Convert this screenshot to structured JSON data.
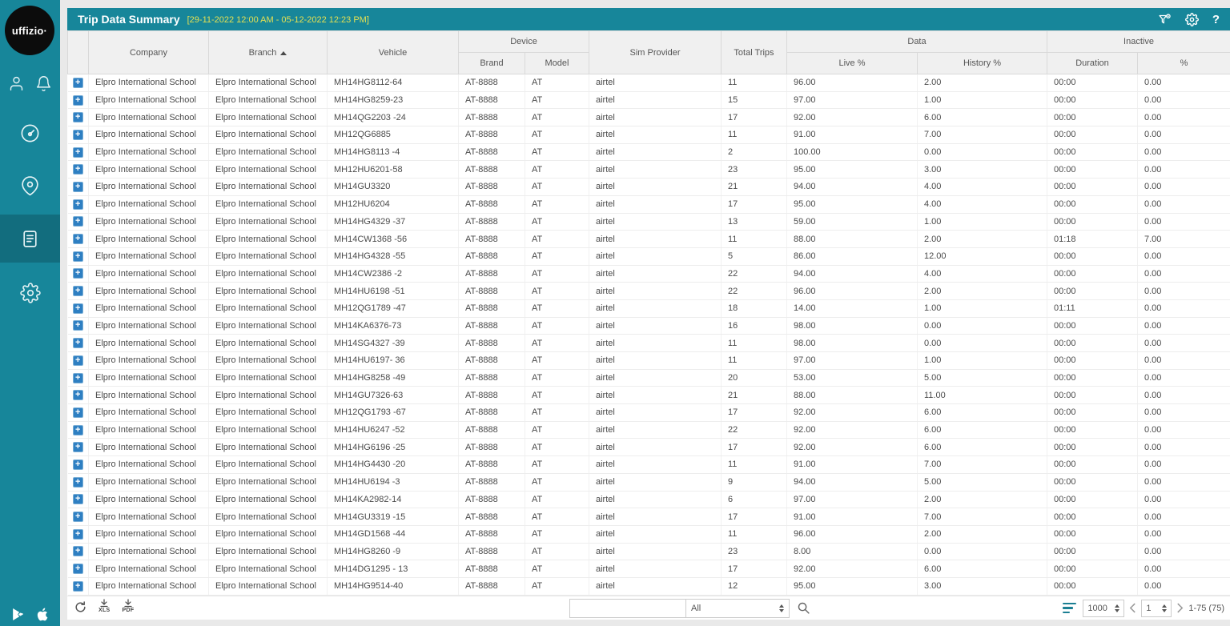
{
  "brand_logo": "uffizio·",
  "colors": {
    "accent_teal": "#17869a",
    "date_yellow": "#e4e052",
    "expand_blue": "#2e7fc2",
    "page_bg": "#e9e9e9"
  },
  "icons": {
    "sidebar": [
      "user",
      "bell",
      "dashboard-speedometer",
      "location-pin",
      "reports-document",
      "settings-gear",
      "google-play",
      "apple"
    ],
    "titlebar": [
      "filter-funnel",
      "settings-gear",
      "help-question"
    ],
    "footer": [
      "refresh",
      "download-xls",
      "download-pdf",
      "search-magnifier",
      "rows-lines",
      "chevron-left",
      "chevron-right"
    ]
  },
  "titlebar": {
    "title": "Trip Data Summary",
    "date_range": "[29-11-2022 12:00 AM - 05-12-2022 12:23 PM]",
    "help_label": "?"
  },
  "table": {
    "sort": {
      "column": "Branch",
      "direction": "asc"
    },
    "columns": {
      "company": "Company",
      "branch": "Branch",
      "vehicle": "Vehicle",
      "device": "Device",
      "brand": "Brand",
      "model": "Model",
      "sim_provider": "Sim Provider",
      "total_trips": "Total Trips",
      "data": "Data",
      "live_pct": "Live %",
      "history_pct": "History %",
      "inactive": "Inactive",
      "duration": "Duration",
      "pct": "%"
    },
    "row_constants": {
      "company": "Elpro International School",
      "branch": "Elpro International School",
      "brand": "AT-8888",
      "model": "AT",
      "sim_provider": "airtel"
    },
    "rows": [
      {
        "vehicle": "MH14HG8112-64",
        "trips": "11",
        "live": "96.00",
        "history": "2.00",
        "duration": "00:00",
        "inactive": "0.00"
      },
      {
        "vehicle": "MH14HG8259-23",
        "trips": "15",
        "live": "97.00",
        "history": "1.00",
        "duration": "00:00",
        "inactive": "0.00"
      },
      {
        "vehicle": "MH14QG2203 -24",
        "trips": "17",
        "live": "92.00",
        "history": "6.00",
        "duration": "00:00",
        "inactive": "0.00"
      },
      {
        "vehicle": "MH12QG6885",
        "trips": "11",
        "live": "91.00",
        "history": "7.00",
        "duration": "00:00",
        "inactive": "0.00"
      },
      {
        "vehicle": "MH14HG8113 -4",
        "trips": "2",
        "live": "100.00",
        "history": "0.00",
        "duration": "00:00",
        "inactive": "0.00"
      },
      {
        "vehicle": "MH12HU6201-58",
        "trips": "23",
        "live": "95.00",
        "history": "3.00",
        "duration": "00:00",
        "inactive": "0.00"
      },
      {
        "vehicle": "MH14GU3320",
        "trips": "21",
        "live": "94.00",
        "history": "4.00",
        "duration": "00:00",
        "inactive": "0.00"
      },
      {
        "vehicle": "MH12HU6204",
        "trips": "17",
        "live": "95.00",
        "history": "4.00",
        "duration": "00:00",
        "inactive": "0.00"
      },
      {
        "vehicle": "MH14HG4329 -37",
        "trips": "13",
        "live": "59.00",
        "history": "1.00",
        "duration": "00:00",
        "inactive": "0.00"
      },
      {
        "vehicle": "MH14CW1368 -56",
        "trips": "11",
        "live": "88.00",
        "history": "2.00",
        "duration": "01:18",
        "inactive": "7.00"
      },
      {
        "vehicle": "MH14HG4328 -55",
        "trips": "5",
        "live": "86.00",
        "history": "12.00",
        "duration": "00:00",
        "inactive": "0.00"
      },
      {
        "vehicle": "MH14CW2386 -2",
        "trips": "22",
        "live": "94.00",
        "history": "4.00",
        "duration": "00:00",
        "inactive": "0.00"
      },
      {
        "vehicle": "MH14HU6198 -51",
        "trips": "22",
        "live": "96.00",
        "history": "2.00",
        "duration": "00:00",
        "inactive": "0.00"
      },
      {
        "vehicle": "MH12QG1789 -47",
        "trips": "18",
        "live": "14.00",
        "history": "1.00",
        "duration": "01:11",
        "inactive": "0.00"
      },
      {
        "vehicle": "MH14KA6376-73",
        "trips": "16",
        "live": "98.00",
        "history": "0.00",
        "duration": "00:00",
        "inactive": "0.00"
      },
      {
        "vehicle": "MH14SG4327 -39",
        "trips": "11",
        "live": "98.00",
        "history": "0.00",
        "duration": "00:00",
        "inactive": "0.00"
      },
      {
        "vehicle": "MH14HU6197- 36",
        "trips": "11",
        "live": "97.00",
        "history": "1.00",
        "duration": "00:00",
        "inactive": "0.00"
      },
      {
        "vehicle": "MH14HG8258 -49",
        "trips": "20",
        "live": "53.00",
        "history": "5.00",
        "duration": "00:00",
        "inactive": "0.00"
      },
      {
        "vehicle": "MH14GU7326-63",
        "trips": "21",
        "live": "88.00",
        "history": "11.00",
        "duration": "00:00",
        "inactive": "0.00"
      },
      {
        "vehicle": "MH12QG1793 -67",
        "trips": "17",
        "live": "92.00",
        "history": "6.00",
        "duration": "00:00",
        "inactive": "0.00"
      },
      {
        "vehicle": "MH14HU6247 -52",
        "trips": "22",
        "live": "92.00",
        "history": "6.00",
        "duration": "00:00",
        "inactive": "0.00"
      },
      {
        "vehicle": "MH14HG6196 -25",
        "trips": "17",
        "live": "92.00",
        "history": "6.00",
        "duration": "00:00",
        "inactive": "0.00"
      },
      {
        "vehicle": "MH14HG4430 -20",
        "trips": "11",
        "live": "91.00",
        "history": "7.00",
        "duration": "00:00",
        "inactive": "0.00"
      },
      {
        "vehicle": "MH14HU6194 -3",
        "trips": "9",
        "live": "94.00",
        "history": "5.00",
        "duration": "00:00",
        "inactive": "0.00"
      },
      {
        "vehicle": "MH14KA2982-14",
        "trips": "6",
        "live": "97.00",
        "history": "2.00",
        "duration": "00:00",
        "inactive": "0.00"
      },
      {
        "vehicle": "MH14GU3319 -15",
        "trips": "17",
        "live": "91.00",
        "history": "7.00",
        "duration": "00:00",
        "inactive": "0.00"
      },
      {
        "vehicle": "MH14GD1568 -44",
        "trips": "11",
        "live": "96.00",
        "history": "2.00",
        "duration": "00:00",
        "inactive": "0.00"
      },
      {
        "vehicle": "MH14HG8260 -9",
        "trips": "23",
        "live": "8.00",
        "history": "0.00",
        "duration": "00:00",
        "inactive": "0.00"
      },
      {
        "vehicle": "MH14DG1295 - 13",
        "trips": "17",
        "live": "92.00",
        "history": "6.00",
        "duration": "00:00",
        "inactive": "0.00"
      },
      {
        "vehicle": "MH14HG9514-40",
        "trips": "12",
        "live": "95.00",
        "history": "3.00",
        "duration": "00:00",
        "inactive": "0.00"
      }
    ]
  },
  "footer": {
    "export_xls": "XLS",
    "export_pdf": "PDF",
    "search_value": "",
    "filter_selected": "All",
    "page_size": "1000",
    "page": "1",
    "range_label": "1-75 (75)"
  }
}
